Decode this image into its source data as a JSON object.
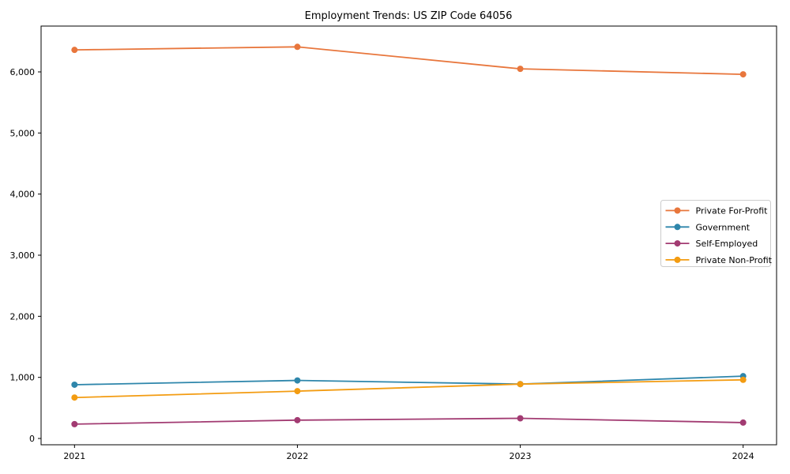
{
  "chart_data": {
    "type": "line",
    "title": "Employment Trends: US ZIP Code 64056",
    "xlabel": "",
    "ylabel": "",
    "x": [
      2021,
      2022,
      2023,
      2024
    ],
    "x_tick_labels": [
      "2021",
      "2022",
      "2023",
      "2024"
    ],
    "y_ticks": [
      0,
      1000,
      2000,
      3000,
      4000,
      5000,
      6000
    ],
    "y_tick_labels": [
      "0",
      "1,000",
      "2,000",
      "3,000",
      "4,000",
      "5,000",
      "6,000"
    ],
    "xlim": [
      2020.85,
      2024.15
    ],
    "ylim": [
      -103,
      6750
    ],
    "grid": false,
    "legend_position": "center-right",
    "marker": "circle",
    "frame_color": "#000000",
    "legend_border_color": "#cccccc",
    "series": [
      {
        "name": "Private For-Profit",
        "color": "#e8763c",
        "values": [
          6360,
          6410,
          6050,
          5960
        ]
      },
      {
        "name": "Government",
        "color": "#2e86ab",
        "values": [
          880,
          950,
          890,
          1020
        ]
      },
      {
        "name": "Self-Employed",
        "color": "#a23b72",
        "values": [
          235,
          300,
          330,
          260
        ]
      },
      {
        "name": "Private Non-Profit",
        "color": "#f39c12",
        "values": [
          670,
          775,
          890,
          960
        ]
      }
    ]
  }
}
